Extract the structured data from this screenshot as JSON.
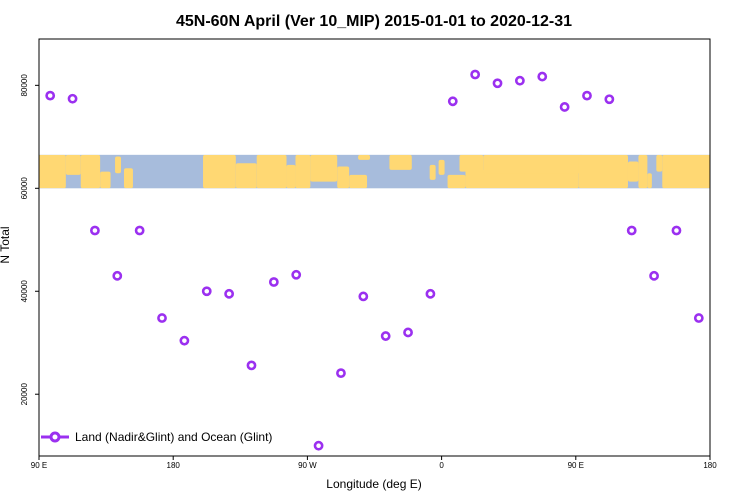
{
  "chart_data": {
    "type": "scatter",
    "title": "45N-60N April (Ver 10_MIP)   2015-01-01 to 2020-12-31",
    "xlabel": "Longitude (deg E)",
    "ylabel": "N Total",
    "x_ticks": [
      {
        "value": 90,
        "label": "90 E"
      },
      {
        "value": 180,
        "label": "180"
      },
      {
        "value": 270,
        "label": "90 W"
      },
      {
        "value": 360,
        "label": "0"
      },
      {
        "value": 450,
        "label": "90 E"
      },
      {
        "value": 540,
        "label": "180"
      }
    ],
    "y_ticks": [
      {
        "value": 20000,
        "label": "20000"
      },
      {
        "value": 40000,
        "label": "40000"
      },
      {
        "value": 60000,
        "label": "60000"
      },
      {
        "value": 80000,
        "label": "80000"
      }
    ],
    "xlim": [
      90,
      540
    ],
    "ylim": [
      8000,
      89000
    ],
    "series": [
      {
        "name": "Land (Nadir&Glint) and Ocean (Glint)",
        "color": "#9b30f0",
        "x": [
          97.5,
          112.5,
          127.5,
          142.5,
          157.5,
          172.5,
          187.5,
          202.5,
          217.5,
          232.5,
          247.5,
          262.5,
          277.5,
          292.5,
          307.5,
          322.5,
          337.5,
          352.5,
          367.5,
          382.5,
          397.5,
          412.5,
          427.5,
          442.5,
          457.5,
          472.5,
          487.5,
          502.5,
          517.5,
          532.5
        ],
        "y": [
          78000,
          77400,
          51800,
          43000,
          51800,
          34800,
          30400,
          40000,
          39500,
          25600,
          41800,
          43200,
          10000,
          24100,
          39000,
          31300,
          32000,
          39500,
          76900,
          82100,
          80400,
          80900,
          81700,
          75800,
          78000,
          77300,
          51800,
          43000,
          51800,
          34800
        ]
      }
    ],
    "legend": {
      "position": "bottom-left"
    },
    "map_band": {
      "y_from": 60000,
      "y_to": 66500
    },
    "colors": {
      "marker": "#9b30f0",
      "land": "#ffd873",
      "ocean": "#a7bcdc"
    }
  }
}
